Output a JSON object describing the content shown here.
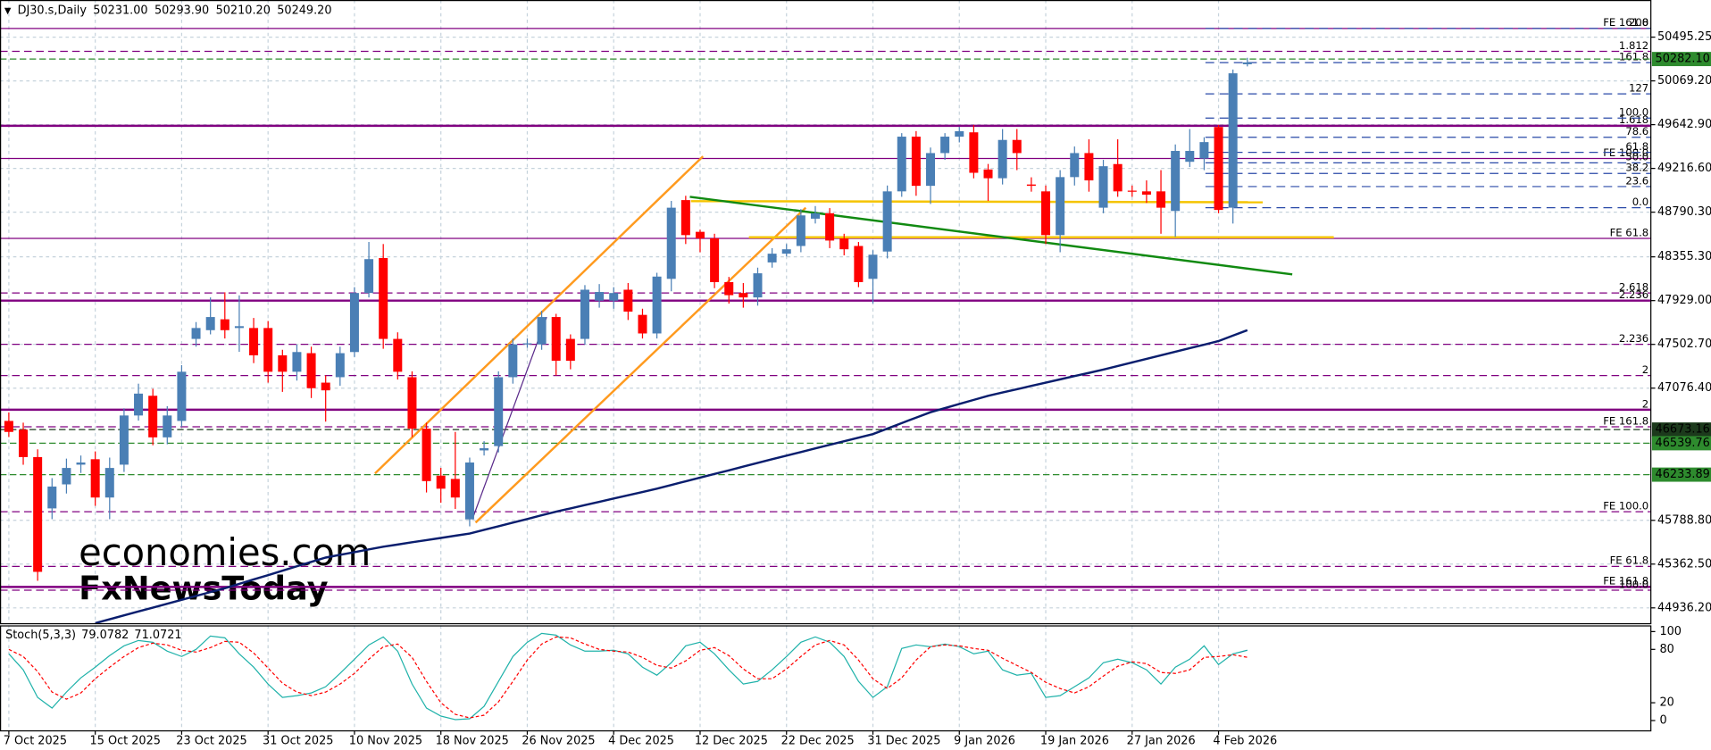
{
  "chart_data": [
    {
      "type": "candlestick",
      "symbol": "DJ30.s,Daily",
      "header_ohlc": [
        "50231.00",
        "50293.90",
        "50210.20",
        "50249.20"
      ],
      "categories": [
        "7 Oct 2025",
        null,
        null,
        null,
        null,
        null,
        "15 Oct 2025",
        null,
        null,
        null,
        null,
        null,
        "23 Oct 2025",
        null,
        null,
        null,
        null,
        null,
        "31 Oct 2025",
        null,
        null,
        null,
        null,
        null,
        "10 Nov 2025",
        null,
        null,
        null,
        null,
        null,
        "18 Nov 2025",
        null,
        null,
        null,
        null,
        null,
        "26 Nov 2025",
        null,
        null,
        null,
        null,
        null,
        "4 Dec 2025",
        null,
        null,
        null,
        null,
        null,
        "12 Dec 2025",
        null,
        null,
        null,
        null,
        null,
        "22 Dec 2025",
        null,
        null,
        null,
        null,
        null,
        "31 Dec 2025",
        null,
        null,
        null,
        null,
        null,
        "9 Jan 2026",
        null,
        null,
        null,
        null,
        null,
        "19 Jan 2026",
        null,
        null,
        null,
        null,
        null,
        "27 Jan 2026",
        null,
        null,
        null,
        null,
        null,
        "4 Feb 2026",
        null,
        null
      ],
      "open": [
        46757,
        46672,
        46405,
        45905,
        46139,
        46331,
        46384,
        46011,
        46331,
        46810,
        47002,
        46597,
        46757,
        47556,
        47641,
        47747,
        47662,
        47662,
        47662,
        47396,
        47236,
        47417,
        47130,
        47183,
        47428,
        48003,
        48344,
        47556,
        47183,
        46682,
        46224,
        46192,
        45798,
        46470,
        46512,
        47183,
        47503,
        47503,
        47769,
        47556,
        47556,
        47929,
        47929,
        48035,
        47790,
        47609,
        48141,
        48908,
        48599,
        48535,
        48109,
        48003,
        47960,
        48301,
        48386,
        48461,
        48727,
        48780,
        48535,
        48461,
        48141,
        48407,
        48993,
        49526,
        49047,
        49366,
        49526,
        49568,
        49206,
        49121,
        49494,
        49060,
        48993,
        48567,
        49132,
        49366,
        48834,
        49259,
        49000,
        48993,
        48993,
        48802,
        49281,
        49313,
        49620,
        48834,
        50231
      ],
      "high": [
        46840,
        46740,
        46480,
        46200,
        46390,
        46420,
        46460,
        46400,
        46880,
        47120,
        47070,
        46900,
        47300,
        47720,
        47960,
        48010,
        47980,
        47760,
        47730,
        47450,
        47500,
        47480,
        47200,
        47480,
        48060,
        48500,
        48480,
        47620,
        47240,
        46740,
        46300,
        46650,
        46400,
        46560,
        47240,
        47560,
        47560,
        47830,
        47800,
        47600,
        48080,
        48090,
        48060,
        48100,
        47850,
        48200,
        48900,
        48950,
        48620,
        48580,
        48160,
        48100,
        48250,
        48440,
        48480,
        48820,
        48850,
        48830,
        48580,
        48500,
        48420,
        49050,
        49560,
        49580,
        49420,
        49560,
        49620,
        49640,
        49260,
        49600,
        49600,
        49130,
        49050,
        49200,
        49430,
        49500,
        49300,
        49500,
        49050,
        49100,
        49200,
        49450,
        49600,
        49520,
        49640,
        50180,
        50293.9
      ],
      "low": [
        46600,
        46330,
        45200,
        45800,
        46050,
        46250,
        45930,
        45800,
        46260,
        46760,
        46520,
        46530,
        46700,
        47480,
        47600,
        47560,
        47430,
        47320,
        47130,
        47040,
        47150,
        46980,
        46750,
        47100,
        47380,
        47960,
        47460,
        47160,
        46600,
        46060,
        45960,
        45900,
        45730,
        46420,
        46450,
        47120,
        47470,
        47450,
        47200,
        47260,
        47500,
        47860,
        47850,
        47740,
        47560,
        47560,
        48020,
        48480,
        48400,
        48050,
        47900,
        47860,
        47880,
        48250,
        48360,
        48400,
        48680,
        48440,
        48370,
        48060,
        47900,
        48340,
        48940,
        48950,
        48870,
        49300,
        49470,
        49120,
        48900,
        49060,
        49200,
        48990,
        48480,
        48400,
        49050,
        48990,
        48780,
        48940,
        48940,
        48880,
        48580,
        48550,
        49230,
        49200,
        48780,
        48680,
        50210.2
      ],
      "close": [
        46650,
        46405,
        45287,
        46118,
        46299,
        46352,
        46011,
        46299,
        46810,
        47023,
        46597,
        46810,
        47236,
        47662,
        47769,
        47641,
        47680,
        47396,
        47236,
        47236,
        47428,
        47076,
        47055,
        47417,
        48003,
        48333,
        47556,
        47236,
        46682,
        46171,
        46097,
        46011,
        46352,
        46491,
        47183,
        47503,
        47513,
        47769,
        47343,
        47343,
        48035,
        48013,
        48003,
        47822,
        47609,
        48163,
        48834,
        48567,
        48535,
        48109,
        47982,
        47960,
        48195,
        48386,
        48429,
        48759,
        48780,
        48514,
        48429,
        48109,
        48376,
        48993,
        49526,
        49047,
        49366,
        49526,
        49579,
        49174,
        49121,
        49494,
        49366,
        49047,
        48567,
        49132,
        49366,
        49100,
        49238,
        48993,
        48993,
        48961,
        48834,
        49387,
        49387,
        49473,
        48812,
        50143,
        50249.2
      ],
      "up_color": "#4a7fb5",
      "down_color": "#ff0000",
      "ma_color": "#0a1e6e",
      "ma_values": [
        null,
        null,
        null,
        null,
        null,
        null,
        44787,
        44825,
        44863,
        44901,
        44938,
        44976,
        45014,
        45052,
        45090,
        45127,
        45170,
        45213,
        45255,
        45298,
        45341,
        45384,
        45426,
        45453,
        45479,
        45506,
        45532,
        45553,
        45575,
        45596,
        45617,
        45639,
        45660,
        45696,
        45731,
        45767,
        45802,
        45838,
        45873,
        45905,
        45937,
        45969,
        46001,
        46033,
        46065,
        46097,
        46133,
        46169,
        46205,
        46241,
        46276,
        46312,
        46348,
        46384,
        46419,
        46454,
        46489,
        46524,
        46559,
        46594,
        46629,
        46682,
        46736,
        46789,
        46842,
        46882,
        46922,
        46962,
        47002,
        47034,
        47066,
        47098,
        47130,
        47162,
        47194,
        47225,
        47257,
        47292,
        47327,
        47361,
        47396,
        47431,
        47466,
        47500,
        47535,
        47588,
        47641
      ],
      "ylim": [
        44787,
        50857
      ],
      "yticks": [
        50495.25,
        {
          "value": 50069.2,
          "label": "50069.20"
        },
        {
          "value": 49642.9,
          "label": "49642.90"
        },
        {
          "value": 49216.6,
          "label": "49216.60"
        },
        {
          "value": 48790.3,
          "label": "48790.30"
        },
        {
          "value": 48355.3,
          "label": "48355.30"
        },
        {
          "value": 47929,
          "label": "47929.00"
        },
        {
          "value": 47502.7,
          "label": "47502.70"
        },
        {
          "value": 47076.4,
          "label": "47076.40"
        },
        {
          "value": 45788.8,
          "label": "45788.80"
        },
        {
          "value": 45362.5,
          "label": "45362.50"
        },
        {
          "value": 44936.2,
          "label": "44936.20"
        }
      ],
      "grid": true,
      "level_color": "#800080",
      "levels": [
        {
          "value": 50580,
          "label": "FE 161.8",
          "style": "solid"
        },
        {
          "value": 50357,
          "label": "1.812",
          "style": "dash"
        },
        {
          "value": 49632,
          "label": "1.618",
          "style": "thick"
        },
        {
          "value": 49313,
          "label": "FE 100.0",
          "style": "solid"
        },
        {
          "value": 48535,
          "label": "FE 61.8",
          "style": "solid"
        },
        {
          "value": 48003,
          "label": "2.618",
          "style": "dash"
        },
        {
          "value": 47929,
          "label": "2.236",
          "style": "thick"
        },
        {
          "value": 47503,
          "label": "2.236",
          "style": "dash"
        },
        {
          "value": 47199,
          "label": "2",
          "style": "dash"
        },
        {
          "value": 46866,
          "label": "2",
          "style": "thick"
        },
        {
          "value": 46700,
          "label": "FE 161.8",
          "style": "dash"
        },
        {
          "value": 45873,
          "label": "FE 100.0",
          "style": "dash"
        },
        {
          "value": 45340,
          "label": "FE 61.8",
          "style": "dash"
        },
        {
          "value": 45140,
          "label": "FE 161.8",
          "style": "thick"
        },
        {
          "value": 45108,
          "label": "100.0",
          "style": "dash"
        }
      ],
      "fib_color": "#2a4aa8",
      "fib_levels": [
        {
          "value": 48834,
          "label": "0.0"
        },
        {
          "value": 49040,
          "label": "23.6"
        },
        {
          "value": 49168,
          "label": "38.2"
        },
        {
          "value": 49271,
          "label": "50.0"
        },
        {
          "value": 49373,
          "label": "61.8"
        },
        {
          "value": 49520,
          "label": "78.6"
        },
        {
          "value": 49707,
          "label": "100.0"
        },
        {
          "value": 49943,
          "label": "127"
        },
        {
          "value": 50247,
          "label": "161.8"
        },
        {
          "value": 50580,
          "label": "200"
        }
      ],
      "price_marks": [
        {
          "value": 50282.1,
          "label": "50282.10",
          "color": "#2e8b2e"
        },
        {
          "value": 46673.16,
          "label": "46673.16",
          "color": "#1c3a1c"
        },
        {
          "value": 46539.76,
          "label": "46539.76",
          "color": "#2e8b2e"
        },
        {
          "value": 46233.89,
          "label": "46233.89",
          "color": "#2e8b2e"
        }
      ],
      "watermark": [
        "economies.com",
        "FxNewsToday"
      ]
    },
    {
      "type": "line",
      "title": "Stoch(5,3,3)",
      "series": [
        {
          "color": "#20b2aa",
          "style": "solid",
          "values": [
            75,
            57,
            26,
            14,
            32,
            48,
            60,
            73,
            84,
            90,
            88,
            78,
            72,
            80,
            95,
            93,
            75,
            60,
            41,
            26,
            28,
            31,
            38,
            53,
            69,
            85,
            94,
            78,
            41,
            14,
            5,
            1,
            2,
            16,
            44,
            72,
            88,
            98,
            96,
            85,
            78,
            78,
            79,
            75,
            60,
            51,
            65,
            84,
            88,
            75,
            57,
            41,
            44,
            57,
            72,
            88,
            94,
            88,
            72,
            44,
            26,
            38,
            81,
            85,
            83,
            86,
            83,
            75,
            78,
            57,
            51,
            53,
            26,
            28,
            38,
            48,
            65,
            69,
            65,
            57,
            41,
            60,
            69,
            84,
            63,
            75,
            79.0782
          ]
        },
        {
          "color": "#ff0000",
          "style": "dash",
          "values": [
            80,
            72,
            55,
            32,
            24,
            31,
            47,
            60,
            72,
            82,
            87,
            85,
            79,
            77,
            82,
            89,
            88,
            76,
            59,
            42,
            32,
            28,
            32,
            41,
            53,
            69,
            83,
            86,
            71,
            44,
            20,
            7,
            3,
            6,
            21,
            44,
            68,
            86,
            94,
            93,
            86,
            80,
            78,
            77,
            71,
            62,
            59,
            67,
            79,
            82,
            73,
            58,
            47,
            47,
            58,
            72,
            85,
            90,
            85,
            68,
            47,
            36,
            48,
            68,
            83,
            85,
            84,
            81,
            79,
            70,
            62,
            54,
            43,
            36,
            31,
            38,
            50,
            61,
            66,
            64,
            54,
            53,
            57,
            71,
            72,
            74,
            71.0721
          ]
        }
      ],
      "ylim": [
        -11,
        107
      ],
      "yticks": [
        100,
        80,
        20,
        0
      ]
    }
  ]
}
